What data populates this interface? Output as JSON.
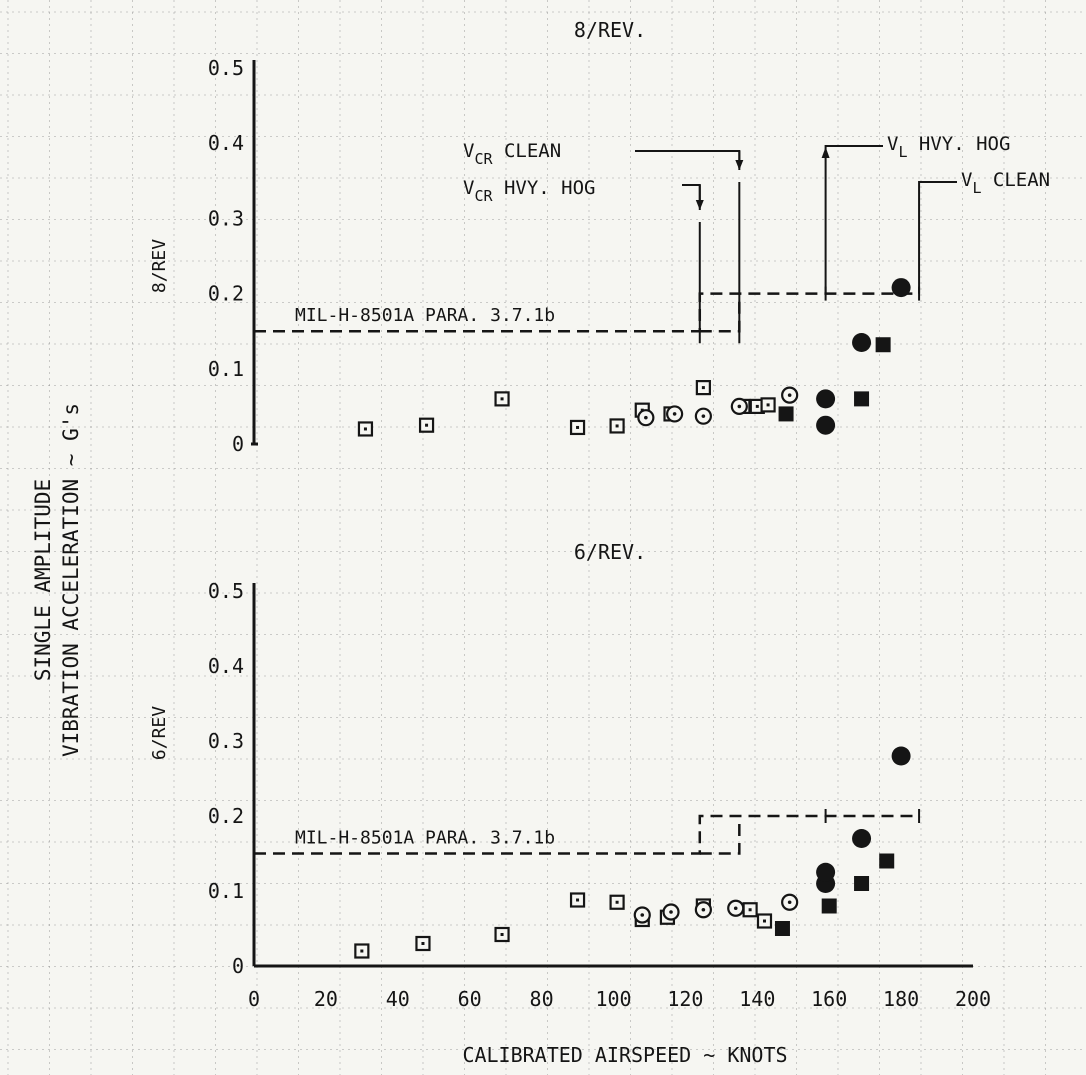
{
  "y_axis_title_lines": [
    "SINGLE AMPLITUDE",
    "VIBRATION ACCELERATION ~ G's"
  ],
  "x_axis_title": "CALIBRATED AIRSPEED ~ KNOTS",
  "x_tick_labels": [
    "0",
    "20",
    "40",
    "60",
    "80",
    "100",
    "120",
    "140",
    "160",
    "180",
    "200"
  ],
  "colors": {
    "ink": "#151515",
    "paper": "#f6f6f2",
    "grid": "#8d8d8d"
  },
  "chart_data": [
    {
      "type": "scatter",
      "title": "8/REV.",
      "ylabel": "8/REV",
      "xlabel": "CALIBRATED AIRSPEED ~ KNOTS",
      "xlim": [
        0,
        200
      ],
      "ylim": [
        0,
        0.5
      ],
      "y_tick_labels": [
        "0",
        "0.1",
        "0.2",
        "0.3",
        "0.4",
        "0.5"
      ],
      "grid": true,
      "series": [
        {
          "marker": "open-square",
          "points": [
            [
              31,
              0.02
            ],
            [
              48,
              0.025
            ],
            [
              69,
              0.06
            ],
            [
              90,
              0.022
            ],
            [
              101,
              0.024
            ],
            [
              108,
              0.045
            ],
            [
              116,
              0.04
            ],
            [
              125,
              0.075
            ],
            [
              136,
              0.05
            ],
            [
              140,
              0.05
            ],
            [
              143,
              0.052
            ]
          ]
        },
        {
          "marker": "open-circle",
          "points": [
            [
              109,
              0.035
            ],
            [
              117,
              0.04
            ],
            [
              125,
              0.037
            ],
            [
              135,
              0.05
            ],
            [
              149,
              0.065
            ]
          ]
        },
        {
          "marker": "filled-square",
          "points": [
            [
              148,
              0.04
            ],
            [
              169,
              0.06
            ],
            [
              175,
              0.132
            ]
          ]
        },
        {
          "marker": "filled-circle",
          "points": [
            [
              159,
              0.025
            ],
            [
              159,
              0.06
            ],
            [
              169,
              0.135
            ],
            [
              180,
              0.208
            ]
          ]
        }
      ],
      "limit_line": {
        "label": "MIL-H-8501A PARA. 3.7.1b",
        "points": [
          [
            0,
            0.15
          ],
          [
            124,
            0.15
          ],
          [
            124,
            0.2
          ],
          [
            185,
            0.2
          ],
          [
            185,
            0.2
          ]
        ],
        "second_step": [
          [
            124,
            0.15
          ],
          [
            135,
            0.15
          ],
          [
            135,
            0.2
          ]
        ]
      },
      "annotations": [
        {
          "main": "V",
          "sub": "CR",
          "rest": " CLEAN",
          "x": 135
        },
        {
          "main": "V",
          "sub": "CR",
          "rest": " HVY. HOG",
          "x": 124
        },
        {
          "main": "V",
          "sub": "L",
          "rest": " HVY. HOG",
          "x": 159
        },
        {
          "main": "V",
          "sub": "L",
          "rest": " CLEAN",
          "x": 185
        }
      ]
    },
    {
      "type": "scatter",
      "title": "6/REV.",
      "ylabel": "6/REV",
      "xlabel": "CALIBRATED AIRSPEED ~ KNOTS",
      "xlim": [
        0,
        200
      ],
      "ylim": [
        0,
        0.5
      ],
      "y_tick_labels": [
        "0",
        "0.1",
        "0.2",
        "0.3",
        "0.4",
        "0.5"
      ],
      "grid": true,
      "series": [
        {
          "marker": "open-square",
          "points": [
            [
              30,
              0.02
            ],
            [
              47,
              0.03
            ],
            [
              69,
              0.042
            ],
            [
              90,
              0.088
            ],
            [
              101,
              0.085
            ],
            [
              108,
              0.062
            ],
            [
              115,
              0.065
            ],
            [
              125,
              0.08
            ],
            [
              138,
              0.075
            ],
            [
              142,
              0.06
            ]
          ]
        },
        {
          "marker": "open-circle",
          "points": [
            [
              108,
              0.068
            ],
            [
              116,
              0.072
            ],
            [
              125,
              0.075
            ],
            [
              134,
              0.077
            ],
            [
              149,
              0.085
            ]
          ]
        },
        {
          "marker": "filled-square",
          "points": [
            [
              147,
              0.05
            ],
            [
              160,
              0.08
            ],
            [
              169,
              0.11
            ],
            [
              176,
              0.14
            ]
          ]
        },
        {
          "marker": "filled-circle",
          "points": [
            [
              159,
              0.11
            ],
            [
              159,
              0.125
            ],
            [
              169,
              0.17
            ],
            [
              180,
              0.28
            ]
          ]
        }
      ],
      "limit_line": {
        "label": "MIL-H-8501A PARA. 3.7.1b",
        "points": [
          [
            0,
            0.15
          ],
          [
            124,
            0.15
          ],
          [
            124,
            0.2
          ],
          [
            185,
            0.2
          ]
        ],
        "second_step": [
          [
            124,
            0.15
          ],
          [
            135,
            0.15
          ],
          [
            135,
            0.2
          ]
        ]
      }
    }
  ]
}
